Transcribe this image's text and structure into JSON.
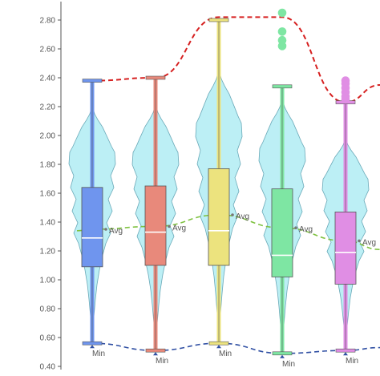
{
  "chart_data": {
    "type": "box-violin",
    "title": "",
    "xlabel": "",
    "ylabel": "",
    "ylim": [
      0.4,
      2.9
    ],
    "yticks": [
      "0.40",
      "0.60",
      "0.80",
      "1.00",
      "1.20",
      "1.40",
      "1.60",
      "1.80",
      "2.00",
      "2.20",
      "2.40",
      "2.60",
      "2.80"
    ],
    "grid": false,
    "legend": "none",
    "series": [
      {
        "color": "#6f95ee",
        "min": 0.56,
        "q1": 1.09,
        "median": 1.29,
        "q3": 1.64,
        "max": 2.38,
        "mean": 1.35,
        "outliers": []
      },
      {
        "color": "#e8897b",
        "min": 0.51,
        "q1": 1.1,
        "median": 1.33,
        "q3": 1.65,
        "max": 2.4,
        "mean": 1.37,
        "outliers": []
      },
      {
        "color": "#ece37e",
        "min": 0.56,
        "q1": 1.1,
        "median": 1.34,
        "q3": 1.77,
        "max": 2.8,
        "mean": 1.45,
        "outliers": []
      },
      {
        "color": "#7ee6a3",
        "min": 0.49,
        "q1": 1.02,
        "median": 1.17,
        "q3": 1.63,
        "max": 2.34,
        "mean": 1.36,
        "outliers": [
          2.85,
          2.72,
          2.66,
          2.62
        ]
      },
      {
        "color": "#e08ee4",
        "min": 0.51,
        "q1": 0.97,
        "median": 1.19,
        "q3": 1.47,
        "max": 2.23,
        "mean": 1.27,
        "outliers": [
          2.38,
          2.36,
          2.33,
          2.3,
          2.27,
          2.25
        ]
      }
    ],
    "max_trend": {
      "color": "#d62020",
      "label": ""
    },
    "avg_trend": {
      "color": "#7fc241",
      "label": "Avg"
    },
    "min_trend": {
      "color": "#2f4fa3",
      "label": "Min"
    },
    "violin_color": "#b0ecf3"
  }
}
